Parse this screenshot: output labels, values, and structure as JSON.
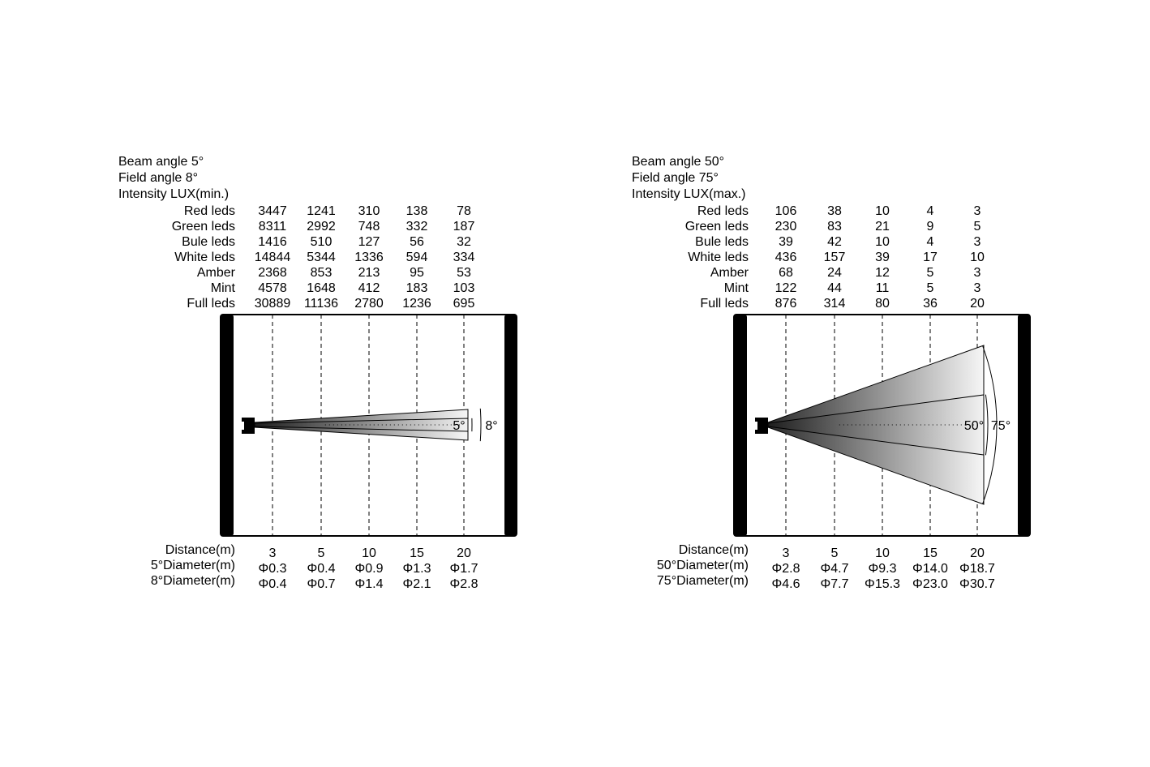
{
  "panels": [
    {
      "header": [
        "Beam angle 5°",
        "Field angle 8°",
        "Intensity LUX(min.)"
      ],
      "rows": [
        {
          "label": "Red leds",
          "values": [
            "3447",
            "1241",
            "310",
            "138",
            "78"
          ]
        },
        {
          "label": "Green leds",
          "values": [
            "8311",
            "2992",
            "748",
            "332",
            "187"
          ]
        },
        {
          "label": "Bule leds",
          "values": [
            "1416",
            "510",
            "127",
            "56",
            "32"
          ]
        },
        {
          "label": "White leds",
          "values": [
            "14844",
            "5344",
            "1336",
            "594",
            "334"
          ]
        },
        {
          "label": "Amber",
          "values": [
            "2368",
            "853",
            "213",
            "95",
            "53"
          ]
        },
        {
          "label": "Mint",
          "values": [
            "4578",
            "1648",
            "412",
            "183",
            "103"
          ]
        },
        {
          "label": "Full leds",
          "values": [
            "30889",
            "11136",
            "2780",
            "1236",
            "695"
          ]
        }
      ],
      "beam_angle_deg": 5,
      "field_angle_deg": 8,
      "beam_label": "5°",
      "field_label": "8°",
      "footer": [
        {
          "label": "Distance(m)",
          "values": [
            "3",
            "5",
            "10",
            "15",
            "20"
          ]
        },
        {
          "label": "5°Diameter(m)",
          "values": [
            "Φ0.3",
            "Φ0.4",
            "Φ0.9",
            "Φ1.3",
            "Φ1.7"
          ]
        },
        {
          "label": "8°Diameter(m)",
          "values": [
            "Φ0.4",
            "Φ0.7",
            "Φ1.4",
            "Φ2.1",
            "Φ2.8"
          ]
        }
      ]
    },
    {
      "header": [
        "Beam angle 50°",
        "Field angle 75°",
        "Intensity LUX(max.)"
      ],
      "rows": [
        {
          "label": "Red leds",
          "values": [
            "106",
            "38",
            "10",
            "4",
            "3"
          ]
        },
        {
          "label": "Green leds",
          "values": [
            "230",
            "83",
            "21",
            "9",
            "5"
          ]
        },
        {
          "label": "Bule leds",
          "values": [
            "39",
            "42",
            "10",
            "4",
            "3"
          ]
        },
        {
          "label": "White leds",
          "values": [
            "436",
            "157",
            "39",
            "17",
            "10"
          ]
        },
        {
          "label": "Amber",
          "values": [
            "68",
            "24",
            "12",
            "5",
            "3"
          ]
        },
        {
          "label": "Mint",
          "values": [
            "122",
            "44",
            "11",
            "5",
            "3"
          ]
        },
        {
          "label": "Full leds",
          "values": [
            "876",
            "314",
            "80",
            "36",
            "20"
          ]
        }
      ],
      "beam_angle_deg": 50,
      "field_angle_deg": 75,
      "beam_label": "50°",
      "field_label": "75°",
      "footer": [
        {
          "label": "Distance(m)",
          "values": [
            "3",
            "5",
            "10",
            "15",
            "20"
          ]
        },
        {
          "label": "50°Diameter(m)",
          "values": [
            "Φ2.8",
            "Φ4.7",
            "Φ9.3",
            "Φ14.0",
            "Φ18.7"
          ]
        },
        {
          "label": "75°Diameter(m)",
          "values": [
            "Φ4.6",
            "Φ7.7",
            "Φ15.3",
            "Φ23.0",
            "Φ30.7"
          ]
        }
      ]
    }
  ]
}
